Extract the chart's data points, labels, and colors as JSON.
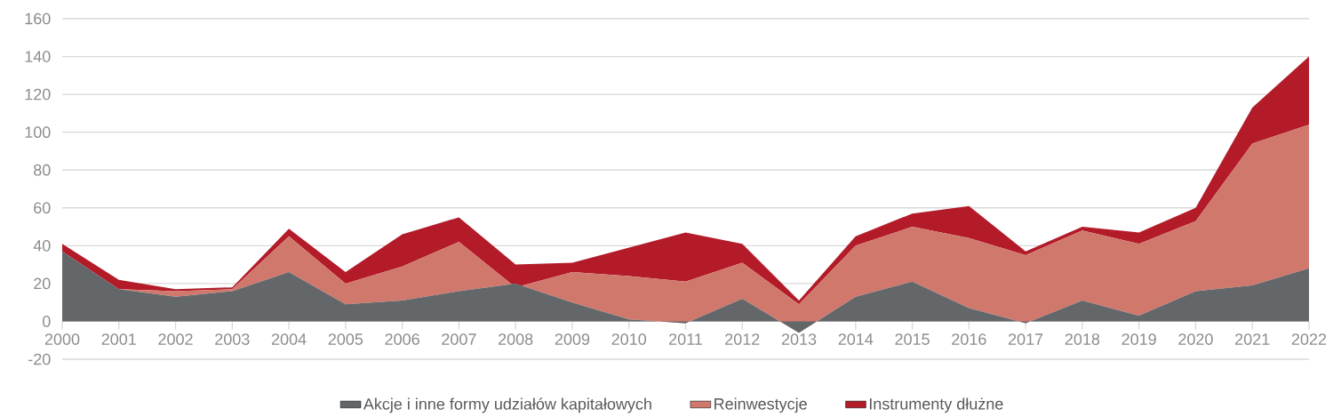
{
  "chart_data": {
    "type": "area",
    "stacked": true,
    "x": [
      2000,
      2001,
      2002,
      2003,
      2004,
      2005,
      2006,
      2007,
      2008,
      2009,
      2010,
      2011,
      2012,
      2013,
      2014,
      2015,
      2016,
      2017,
      2018,
      2019,
      2020,
      2021,
      2022
    ],
    "series": [
      {
        "name": "Akcje i inne formy udziałów kapitałowych",
        "color": "#63676a",
        "values": [
          37,
          17,
          13,
          16,
          26,
          9,
          11,
          16,
          20,
          10,
          1,
          -1,
          12,
          -6,
          13,
          21,
          7,
          -1,
          11,
          3,
          16,
          19,
          28
        ]
      },
      {
        "name": "Reinwestycje",
        "color": "#d1786d",
        "values": [
          0,
          0,
          3,
          1,
          19,
          11,
          18,
          26,
          -2,
          16,
          23,
          22,
          19,
          15,
          27,
          29,
          37,
          36,
          37,
          38,
          37,
          75,
          76
        ]
      },
      {
        "name": "Instrumenty dłużne",
        "color": "#b31b29",
        "values": [
          4,
          5,
          1,
          1,
          4,
          6,
          17,
          13,
          12,
          5,
          15,
          26,
          10,
          2,
          5,
          7,
          17,
          2,
          2,
          6,
          7,
          19,
          36
        ]
      }
    ],
    "xlim": [
      2000,
      2022
    ],
    "xticks": [
      2000,
      2001,
      2002,
      2003,
      2004,
      2005,
      2006,
      2007,
      2008,
      2009,
      2010,
      2011,
      2012,
      2013,
      2014,
      2015,
      2016,
      2017,
      2018,
      2019,
      2020,
      2021,
      2022
    ],
    "ylim": [
      -20,
      160
    ],
    "yticks": [
      -20,
      0,
      20,
      40,
      60,
      80,
      100,
      120,
      140,
      160
    ],
    "grid": "y",
    "legend": "bottom"
  }
}
